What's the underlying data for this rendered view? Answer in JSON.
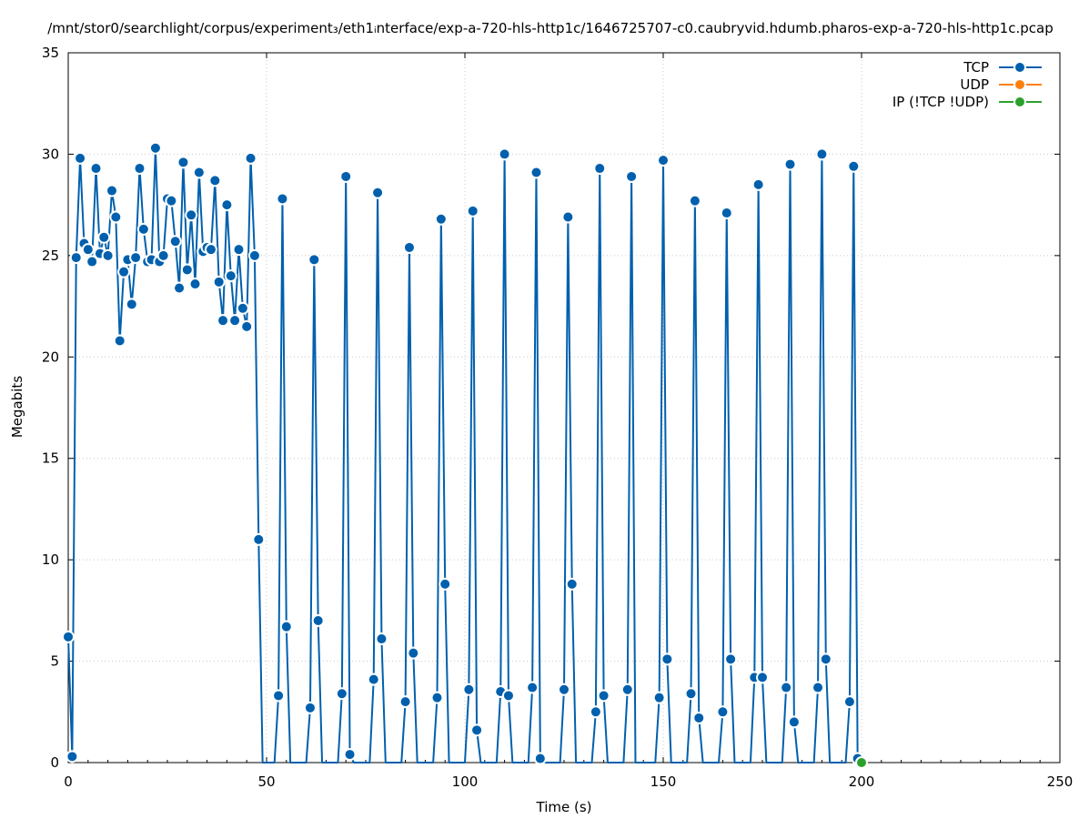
{
  "chart_data": {
    "type": "line",
    "title": "/mnt/stor0/searchlight/corpus/experiment₃/eth1ᵢnterface/exp-a-720-hls-http1c/1646725707-c0.caubryvid.hdumb.pharos-exp-a-720-hls-http1c.pcap",
    "xlabel": "Time (s)",
    "ylabel": "Megabits",
    "xlim": [
      0,
      250
    ],
    "ylim": [
      0,
      35
    ],
    "x_ticks": [
      "0",
      "50",
      "100",
      "150",
      "200",
      "250"
    ],
    "y_ticks": [
      "0",
      "5",
      "10",
      "15",
      "20",
      "25",
      "30",
      "35"
    ],
    "grid": true,
    "legend_position": "top-right",
    "series": [
      {
        "name": "TCP",
        "color": "#0060ad",
        "x": [
          0,
          1,
          2,
          3,
          4,
          5,
          6,
          7,
          8,
          9,
          10,
          11,
          12,
          13,
          14,
          15,
          16,
          17,
          18,
          19,
          20,
          21,
          22,
          23,
          24,
          25,
          26,
          27,
          28,
          29,
          30,
          31,
          32,
          33,
          34,
          35,
          36,
          37,
          38,
          39,
          40,
          41,
          42,
          43,
          44,
          45,
          46,
          47,
          48,
          49,
          50,
          51,
          52,
          53,
          54,
          55,
          56,
          57,
          58,
          59,
          60,
          61,
          62,
          63,
          64,
          65,
          66,
          67,
          68,
          69,
          70,
          71,
          72,
          73,
          74,
          75,
          76,
          77,
          78,
          79,
          80,
          81,
          82,
          83,
          84,
          85,
          86,
          87,
          88,
          89,
          90,
          91,
          92,
          93,
          94,
          95,
          96,
          97,
          98,
          99,
          100,
          101,
          102,
          103,
          104,
          105,
          106,
          107,
          108,
          109,
          110,
          111,
          112,
          113,
          114,
          115,
          116,
          117,
          118,
          119,
          120,
          121,
          122,
          123,
          124,
          125,
          126,
          127,
          128,
          129,
          130,
          131,
          132,
          133,
          134,
          135,
          136,
          137,
          138,
          139,
          140,
          141,
          142,
          143,
          144,
          145,
          146,
          147,
          148,
          149,
          150,
          151,
          152,
          153,
          154,
          155,
          156,
          157,
          158,
          159,
          160,
          161,
          162,
          163,
          164,
          165,
          166,
          167,
          168,
          169,
          170,
          171,
          172,
          173,
          174,
          175,
          176,
          177,
          178,
          179,
          180,
          181,
          182,
          183,
          184,
          185,
          186,
          187,
          188,
          189,
          190,
          191,
          192,
          193,
          194,
          195,
          196,
          197,
          198,
          199,
          200
        ],
        "values": [
          6.2,
          0.3,
          24.9,
          29.8,
          25.6,
          25.3,
          24.7,
          29.3,
          25.1,
          25.9,
          25.0,
          28.2,
          26.9,
          20.8,
          24.2,
          24.8,
          22.6,
          24.9,
          29.3,
          26.3,
          24.7,
          24.8,
          30.3,
          24.7,
          25.0,
          27.8,
          27.7,
          25.7,
          23.4,
          29.6,
          24.3,
          27.0,
          23.6,
          29.1,
          25.2,
          25.4,
          25.3,
          28.7,
          23.7,
          21.8,
          27.5,
          24.0,
          21.8,
          25.3,
          22.4,
          21.5,
          29.8,
          25.0,
          11.0,
          0,
          0,
          0,
          0,
          3.3,
          27.8,
          6.7,
          0,
          0,
          0,
          0,
          0,
          2.7,
          24.8,
          7.0,
          0,
          0,
          0,
          0,
          0,
          3.4,
          28.9,
          0.4,
          0,
          0,
          0,
          0,
          0,
          4.1,
          28.1,
          6.1,
          0,
          0,
          0,
          0,
          0,
          3.0,
          25.4,
          5.4,
          0,
          0,
          0,
          0,
          0,
          3.2,
          26.8,
          8.8,
          0,
          0,
          0,
          0,
          0,
          3.6,
          27.2,
          1.6,
          0,
          0,
          0,
          0,
          0,
          3.5,
          30.0,
          3.3,
          0,
          0,
          0,
          0,
          0,
          3.7,
          29.1,
          0.2,
          0,
          0,
          0,
          0,
          0,
          3.6,
          26.9,
          8.8,
          0,
          0,
          0,
          0,
          0,
          2.5,
          29.3,
          3.3,
          0,
          0,
          0,
          0,
          0,
          3.6,
          28.9,
          0,
          0,
          0,
          0,
          0,
          0,
          3.2,
          29.7,
          5.1,
          0,
          0,
          0,
          0,
          0,
          3.4,
          27.7,
          2.2,
          0,
          0,
          0,
          0,
          0,
          2.5,
          27.1,
          5.1,
          0,
          0,
          0,
          0,
          0,
          4.2,
          28.5,
          4.2,
          0,
          0,
          0,
          0,
          0,
          3.7,
          29.5,
          2.0,
          0,
          0,
          0,
          0,
          0,
          3.7,
          30.0,
          5.1,
          0,
          0,
          0,
          0,
          0,
          3.0,
          29.4,
          0.2,
          0
        ]
      },
      {
        "name": "UDP",
        "color": "#ff7f0e",
        "x": [],
        "values": []
      },
      {
        "name": "IP (!TCP  !UDP)",
        "color": "#2ca02c",
        "x": [
          200
        ],
        "values": [
          0
        ]
      }
    ]
  }
}
